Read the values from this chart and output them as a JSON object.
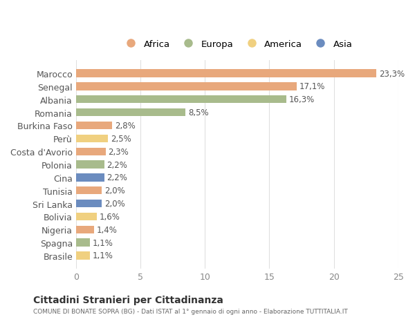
{
  "countries": [
    "Marocco",
    "Senegal",
    "Albania",
    "Romania",
    "Burkina Faso",
    "Perù",
    "Costa d'Avorio",
    "Polonia",
    "Cina",
    "Tunisia",
    "Sri Lanka",
    "Bolivia",
    "Nigeria",
    "Spagna",
    "Brasile"
  ],
  "values": [
    23.3,
    17.1,
    16.3,
    8.5,
    2.8,
    2.5,
    2.3,
    2.2,
    2.2,
    2.0,
    2.0,
    1.6,
    1.4,
    1.1,
    1.1
  ],
  "labels": [
    "23,3%",
    "17,1%",
    "16,3%",
    "8,5%",
    "2,8%",
    "2,5%",
    "2,3%",
    "2,2%",
    "2,2%",
    "2,0%",
    "2,0%",
    "1,6%",
    "1,4%",
    "1,1%",
    "1,1%"
  ],
  "continents": [
    "Africa",
    "Africa",
    "Europa",
    "Europa",
    "Africa",
    "America",
    "Africa",
    "Europa",
    "Asia",
    "Africa",
    "Asia",
    "America",
    "Africa",
    "Europa",
    "America"
  ],
  "colors": {
    "Africa": "#E8A87C",
    "Europa": "#A8BB8C",
    "America": "#F0D080",
    "Asia": "#6B8CBF"
  },
  "legend_order": [
    "Africa",
    "Europa",
    "America",
    "Asia"
  ],
  "title": "Cittadini Stranieri per Cittadinanza",
  "subtitle": "COMUNE DI BONATE SOPRA (BG) - Dati ISTAT al 1° gennaio di ogni anno - Elaborazione TUTTITALIA.IT",
  "xlim": [
    0,
    25
  ],
  "xticks": [
    0,
    5,
    10,
    15,
    20,
    25
  ],
  "background_color": "#ffffff",
  "grid_color": "#e0e0e0"
}
